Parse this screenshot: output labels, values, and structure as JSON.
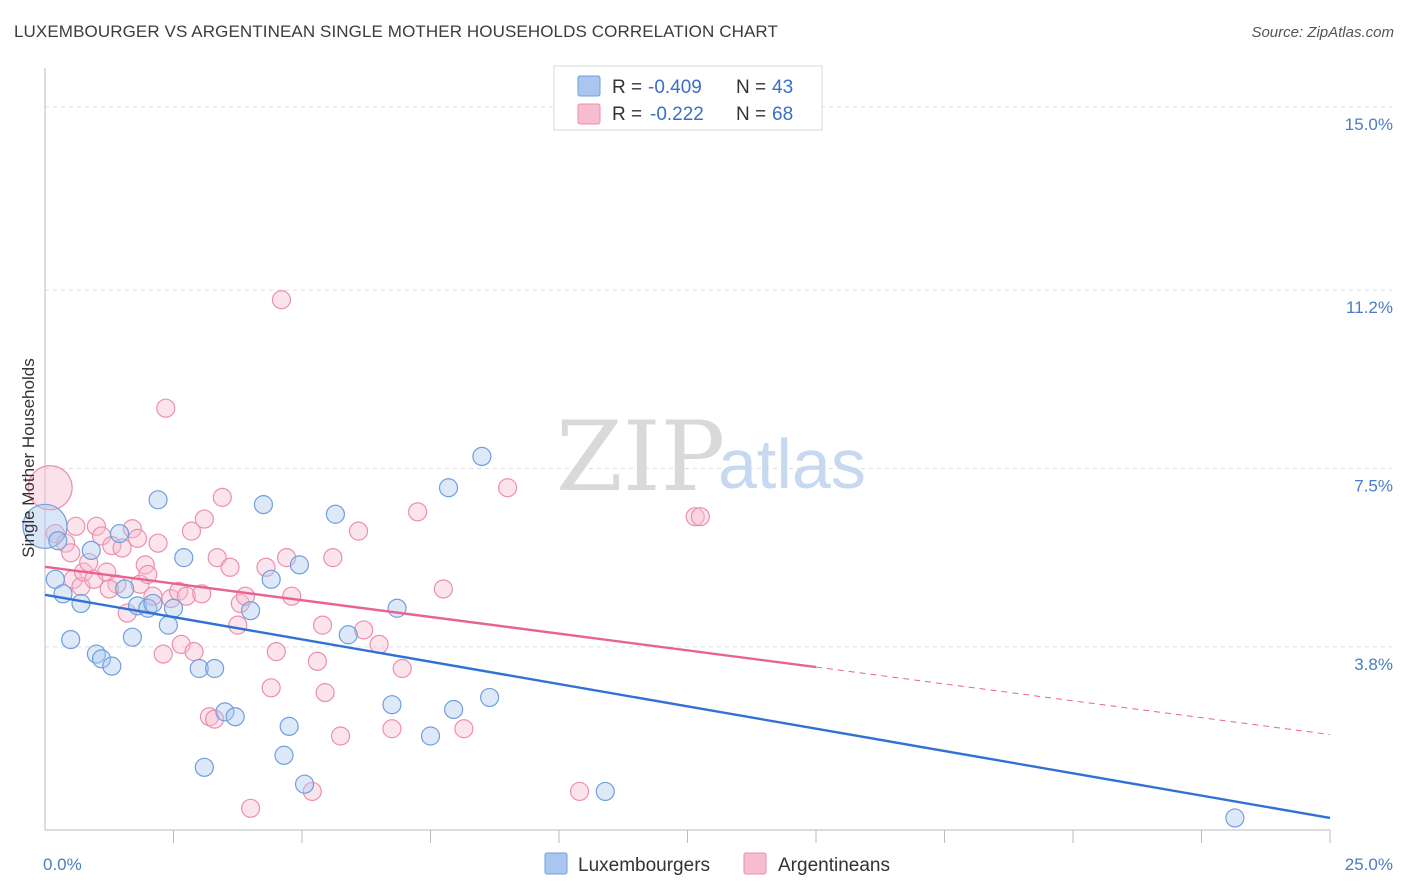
{
  "header": {
    "title": "LUXEMBOURGER VS ARGENTINEAN SINGLE MOTHER HOUSEHOLDS CORRELATION CHART",
    "source": "Source: ZipAtlas.com"
  },
  "watermark": {
    "zip": "ZIP",
    "atlas": "atlas"
  },
  "legend_top": {
    "rows": [
      {
        "r_label": "R =",
        "r_value": "-0.409",
        "n_label": "N =",
        "n_value": "43"
      },
      {
        "r_label": "R =",
        "r_value": "-0.222",
        "n_label": "N =",
        "n_value": "68"
      }
    ]
  },
  "colors": {
    "lux_fill": "#a9c7ee",
    "lux_stroke": "#6f9fdc",
    "lux_line": "#2f72d4",
    "arg_fill": "#f7bccf",
    "arg_stroke": "#ec8fae",
    "arg_line": "#e8648f",
    "grid": "#dddddd",
    "axis": "#bbbbbb",
    "tick_label": "#4a7cc7"
  },
  "chart_data": {
    "type": "scatter",
    "title": "LUXEMBOURGER VS ARGENTINEAN SINGLE MOTHER HOUSEHOLDS CORRELATION CHART",
    "ylabel": "Single Mother Households",
    "xlabel": "",
    "xlim": [
      0,
      25
    ],
    "ylim": [
      0,
      15.6
    ],
    "x_tick_labels": [
      {
        "value": 0,
        "label": "0.0%"
      },
      {
        "value": 25,
        "label": "25.0%"
      }
    ],
    "y_tick_labels": [
      {
        "value": 3.8,
        "label": "3.8%"
      },
      {
        "value": 7.5,
        "label": "7.5%"
      },
      {
        "value": 11.2,
        "label": "11.2%"
      },
      {
        "value": 15.0,
        "label": "15.0%"
      }
    ],
    "grid": true,
    "legend": "bottom-center",
    "series": [
      {
        "name": "Luxembourgers",
        "r": -0.409,
        "n": 43,
        "trend": {
          "x": [
            0,
            25
          ],
          "y": [
            4.88,
            0.25
          ]
        },
        "points": [
          [
            0.0,
            6.3
          ],
          [
            0.2,
            5.2
          ],
          [
            0.35,
            4.9
          ],
          [
            0.5,
            3.95
          ],
          [
            0.7,
            4.7
          ],
          [
            0.9,
            5.8
          ],
          [
            1.0,
            3.65
          ],
          [
            1.1,
            3.55
          ],
          [
            1.3,
            3.4
          ],
          [
            1.45,
            6.15
          ],
          [
            1.55,
            5.0
          ],
          [
            1.7,
            4.0
          ],
          [
            1.8,
            4.65
          ],
          [
            2.0,
            4.6
          ],
          [
            2.1,
            4.7
          ],
          [
            2.2,
            6.85
          ],
          [
            2.4,
            4.25
          ],
          [
            2.5,
            4.6
          ],
          [
            2.7,
            5.65
          ],
          [
            3.0,
            3.35
          ],
          [
            3.1,
            1.3
          ],
          [
            3.3,
            3.35
          ],
          [
            3.5,
            2.45
          ],
          [
            3.7,
            2.35
          ],
          [
            4.0,
            4.55
          ],
          [
            4.25,
            6.75
          ],
          [
            4.4,
            5.2
          ],
          [
            4.65,
            1.55
          ],
          [
            4.75,
            2.15
          ],
          [
            4.95,
            5.5
          ],
          [
            5.05,
            0.95
          ],
          [
            5.65,
            6.55
          ],
          [
            5.9,
            4.05
          ],
          [
            6.75,
            2.6
          ],
          [
            6.85,
            4.6
          ],
          [
            7.5,
            1.95
          ],
          [
            7.85,
            7.1
          ],
          [
            7.95,
            2.5
          ],
          [
            8.5,
            7.75
          ],
          [
            8.65,
            2.75
          ],
          [
            10.9,
            0.8
          ],
          [
            23.15,
            0.25
          ],
          [
            0.25,
            6.0
          ]
        ]
      },
      {
        "name": "Argentineans",
        "r": -0.222,
        "n": 68,
        "trend": {
          "x": [
            0,
            15
          ],
          "y": [
            5.46,
            3.38
          ]
        },
        "trend_dashed": {
          "x": [
            15,
            25
          ],
          "y": [
            3.38,
            1.98
          ]
        },
        "points": [
          [
            0.1,
            7.1
          ],
          [
            0.2,
            6.15
          ],
          [
            0.4,
            5.95
          ],
          [
            0.5,
            5.75
          ],
          [
            0.55,
            5.2
          ],
          [
            0.7,
            5.05
          ],
          [
            0.75,
            5.35
          ],
          [
            0.85,
            5.55
          ],
          [
            0.95,
            5.2
          ],
          [
            1.0,
            6.3
          ],
          [
            1.1,
            6.1
          ],
          [
            1.2,
            5.35
          ],
          [
            1.3,
            5.9
          ],
          [
            1.4,
            5.1
          ],
          [
            1.5,
            5.85
          ],
          [
            1.6,
            4.5
          ],
          [
            1.7,
            6.25
          ],
          [
            1.8,
            6.05
          ],
          [
            1.85,
            5.1
          ],
          [
            1.95,
            5.5
          ],
          [
            2.0,
            5.3
          ],
          [
            2.1,
            4.85
          ],
          [
            2.2,
            5.95
          ],
          [
            2.3,
            3.65
          ],
          [
            2.35,
            8.75
          ],
          [
            2.45,
            4.8
          ],
          [
            2.6,
            4.95
          ],
          [
            2.65,
            3.85
          ],
          [
            2.75,
            4.85
          ],
          [
            2.85,
            6.2
          ],
          [
            2.9,
            3.7
          ],
          [
            3.1,
            6.45
          ],
          [
            3.2,
            2.35
          ],
          [
            3.3,
            2.3
          ],
          [
            3.35,
            5.65
          ],
          [
            3.45,
            6.9
          ],
          [
            3.6,
            5.45
          ],
          [
            3.75,
            4.25
          ],
          [
            3.8,
            4.7
          ],
          [
            3.9,
            4.85
          ],
          [
            4.0,
            0.45
          ],
          [
            4.3,
            5.45
          ],
          [
            4.4,
            2.95
          ],
          [
            4.5,
            3.7
          ],
          [
            4.6,
            11.0
          ],
          [
            4.7,
            5.65
          ],
          [
            4.8,
            4.85
          ],
          [
            5.2,
            0.8
          ],
          [
            5.3,
            3.5
          ],
          [
            5.4,
            4.25
          ],
          [
            5.45,
            2.85
          ],
          [
            5.6,
            5.65
          ],
          [
            5.75,
            1.95
          ],
          [
            6.1,
            6.2
          ],
          [
            6.2,
            4.15
          ],
          [
            6.5,
            3.85
          ],
          [
            6.75,
            2.1
          ],
          [
            6.95,
            3.35
          ],
          [
            7.25,
            6.6
          ],
          [
            7.75,
            5.0
          ],
          [
            8.15,
            2.1
          ],
          [
            9.0,
            7.1
          ],
          [
            10.4,
            0.8
          ],
          [
            12.65,
            6.5
          ],
          [
            12.75,
            6.5
          ],
          [
            3.05,
            4.9
          ],
          [
            1.25,
            5.0
          ],
          [
            0.6,
            6.3
          ]
        ]
      }
    ]
  }
}
